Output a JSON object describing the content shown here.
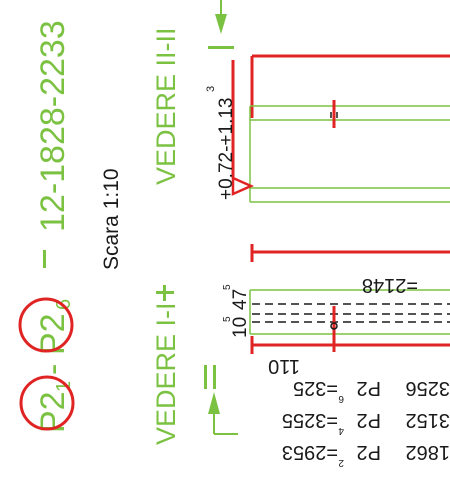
{
  "drawing": {
    "title_code": "12-1828-2233",
    "parts": {
      "first": {
        "base": "P2",
        "sub": "1"
      },
      "dash": "-",
      "second": {
        "base": "P2",
        "sub": "6"
      }
    },
    "scale": "Scara 1:10",
    "view_top": "VEDERE  II-II",
    "view_bottom": "VEDERE  I-I",
    "section_marks": {
      "top": "I",
      "bottom": "II"
    },
    "tolerance": {
      "text": "+0.72-+1.13",
      "sup": "3"
    },
    "dims": {
      "d2148": "=2148",
      "d10": {
        "text": "10",
        "sup": "5"
      },
      "d47": {
        "text": "47",
        "sup": "5"
      },
      "d110": "110"
    },
    "cut_list": [
      {
        "a": "3256",
        "b": "P2",
        "c": "=325",
        "sup": "6"
      },
      {
        "a": "3152",
        "b": "P2",
        "c": "=3255",
        "sup": "4"
      },
      {
        "a": "1862",
        "b": "P2",
        "c": "=2953",
        "sup": "2"
      }
    ]
  },
  "colors": {
    "green": "#7cc242",
    "red": "#e02424",
    "black": "#1a1a1a"
  }
}
